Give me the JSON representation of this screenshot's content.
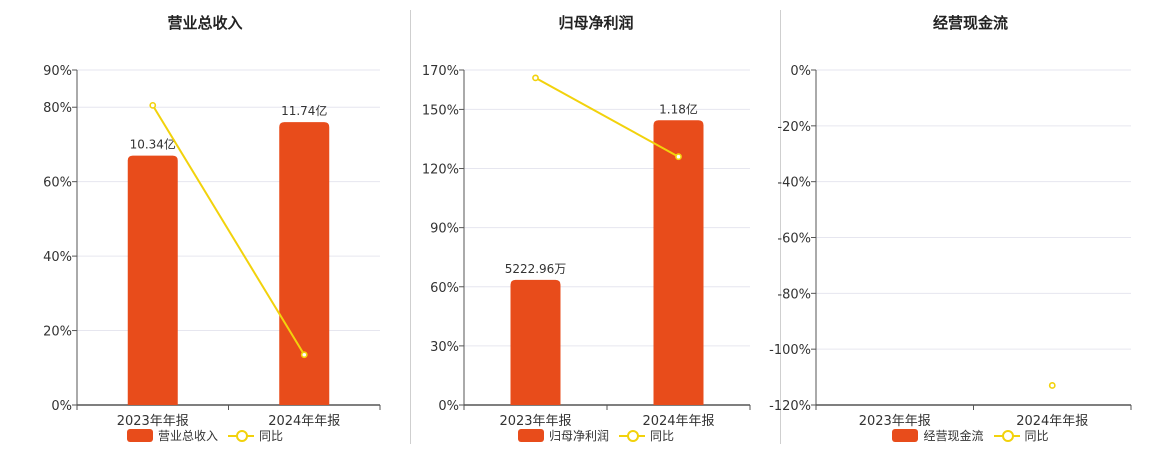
{
  "colors": {
    "bar": "#E84C1B",
    "line": "#F2D20C",
    "grid": "#e6e6ef",
    "axis": "#555555",
    "divider": "#cfcfcf"
  },
  "chart_data": [
    {
      "type": "bar",
      "title": "营业总收入",
      "categories": [
        "2023年年报",
        "2024年年报"
      ],
      "series": [
        {
          "name": "营业总收入",
          "type": "bar",
          "percent_of_axis": [
            67,
            76
          ],
          "data_labels": [
            "10.34亿",
            "11.74亿"
          ]
        },
        {
          "name": "同比",
          "type": "line",
          "values": [
            80.5,
            13.5
          ]
        }
      ],
      "yticks": [
        "0%",
        "20%",
        "40%",
        "60%",
        "80%",
        "90%"
      ],
      "ylim": [
        0,
        90
      ],
      "grid": true,
      "legend": "bottom"
    },
    {
      "type": "bar",
      "title": "归母净利润",
      "categories": [
        "2023年年报",
        "2024年年报"
      ],
      "series": [
        {
          "name": "归母净利润",
          "type": "bar",
          "percent_of_axis": [
            63.5,
            144.5
          ],
          "data_labels": [
            "5222.96万",
            "1.18亿"
          ]
        },
        {
          "name": "同比",
          "type": "line",
          "values": [
            166,
            126
          ]
        }
      ],
      "yticks": [
        "0%",
        "30%",
        "60%",
        "90%",
        "120%",
        "150%",
        "170%"
      ],
      "ylim": [
        0,
        170
      ],
      "grid": true,
      "legend": "bottom"
    },
    {
      "type": "bar",
      "title": "经营现金流",
      "categories": [
        "2023年年报",
        "2024年年报"
      ],
      "series": [
        {
          "name": "经营现金流",
          "type": "bar",
          "percent_of_axis": [
            null,
            null
          ],
          "data_labels": [
            "",
            ""
          ]
        },
        {
          "name": "同比",
          "type": "line",
          "values": [
            null,
            -113
          ]
        }
      ],
      "yticks": [
        "-120%",
        "-100%",
        "-80%",
        "-60%",
        "-40%",
        "-20%",
        "0%"
      ],
      "ylim": [
        -120,
        0
      ],
      "grid": true,
      "legend": "bottom"
    }
  ]
}
